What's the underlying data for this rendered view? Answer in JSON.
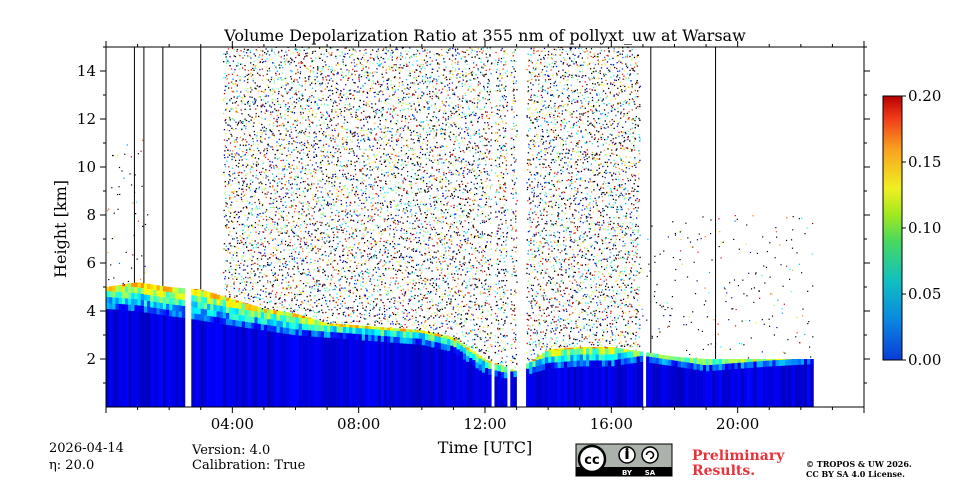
{
  "chart_data": {
    "type": "heatmap",
    "title": "Volume Depolarization Ratio at 355 nm of pollyxt_uw at Warsaw",
    "xlabel": "Time [UTC]",
    "ylabel": "Height [km]",
    "xlim": [
      0,
      24
    ],
    "ylim": [
      0,
      15
    ],
    "x_ticks": [
      4,
      8,
      12,
      16,
      20
    ],
    "x_tick_labels": [
      "04:00",
      "08:00",
      "12:00",
      "16:00",
      "20:00"
    ],
    "y_ticks": [
      2,
      4,
      6,
      8,
      10,
      12,
      14
    ],
    "y_tick_labels": [
      "2",
      "4",
      "6",
      "8",
      "10",
      "12",
      "14"
    ],
    "colorbar": {
      "range": [
        0.0,
        0.2
      ],
      "ticks": [
        0.0,
        0.05,
        0.1,
        0.15,
        0.2
      ],
      "tick_labels": [
        "0.00",
        "0.05",
        "0.10",
        "0.15",
        "0.20"
      ],
      "colormap": "jet"
    },
    "data_extent_hours": [
      0,
      22.4
    ],
    "boundary_layer_top_km": [
      [
        0.0,
        4.1
      ],
      [
        1.0,
        4.0
      ],
      [
        2.0,
        3.8
      ],
      [
        2.6,
        3.7
      ],
      [
        4.0,
        3.4
      ],
      [
        5.0,
        3.2
      ],
      [
        6.0,
        3.0
      ],
      [
        7.0,
        2.9
      ],
      [
        8.0,
        2.8
      ],
      [
        9.0,
        2.7
      ],
      [
        10.0,
        2.6
      ],
      [
        11.0,
        2.3
      ],
      [
        12.0,
        1.4
      ],
      [
        12.6,
        1.2
      ],
      [
        13.2,
        1.3
      ],
      [
        14.0,
        1.6
      ],
      [
        15.0,
        1.7
      ],
      [
        16.0,
        1.7
      ],
      [
        17.0,
        1.9
      ],
      [
        18.0,
        1.7
      ],
      [
        19.0,
        1.5
      ],
      [
        20.0,
        1.6
      ],
      [
        21.0,
        1.7
      ],
      [
        22.4,
        1.8
      ]
    ],
    "aerosol_layer_top_km": [
      [
        0.0,
        5.0
      ],
      [
        1.0,
        5.2
      ],
      [
        2.0,
        5.0
      ],
      [
        3.0,
        4.9
      ],
      [
        4.0,
        4.5
      ],
      [
        5.0,
        4.1
      ],
      [
        6.0,
        3.9
      ],
      [
        7.0,
        3.5
      ],
      [
        8.0,
        3.4
      ],
      [
        9.0,
        3.3
      ],
      [
        10.0,
        3.2
      ],
      [
        11.0,
        2.9
      ],
      [
        12.0,
        2.0
      ],
      [
        13.0,
        1.5
      ],
      [
        14.0,
        2.4
      ],
      [
        15.0,
        2.5
      ],
      [
        16.0,
        2.5
      ],
      [
        17.0,
        2.3
      ],
      [
        18.0,
        2.1
      ],
      [
        19.0,
        2.0
      ],
      [
        20.0,
        2.0
      ],
      [
        21.0,
        2.0
      ],
      [
        22.4,
        2.0
      ]
    ],
    "noisy_high_altitude_period_hours": [
      3.7,
      16.9
    ],
    "data_gaps_hours": [
      [
        2.55,
        2.7
      ],
      [
        12.2,
        12.3
      ],
      [
        12.7,
        12.75
      ],
      [
        13.0,
        13.3
      ],
      [
        16.95,
        17.05
      ]
    ],
    "black_vertical_lines_hours": [
      0.9,
      1.2,
      1.8,
      3.0,
      17.25,
      19.3
    ]
  },
  "footer": {
    "date": "2026-04-14",
    "eta": "η: 20.0",
    "version": "Version: 4.0",
    "calibration": "Calibration: True",
    "preliminary_line1": "Preliminary",
    "preliminary_line2": "Results.",
    "copyright_line1": "© TROPOS & UW 2026.",
    "copyright_line2": "CC BY SA 4.0 License.",
    "license_badge_text": "cc",
    "license_by": "BY",
    "license_sa": "SA"
  }
}
